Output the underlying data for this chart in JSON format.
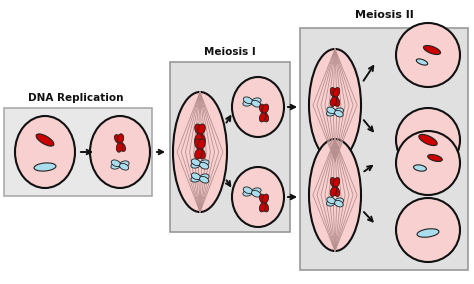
{
  "background_color": "#ffffff",
  "label_dna": "DNA Replication",
  "label_meiosis1": "Meiosis I",
  "label_meiosis2": "Meiosis II",
  "cell_fill": "#f8d0d0",
  "cell_edge": "#111111",
  "spindle_line_color": "#b89090",
  "chrom_red": "#cc0000",
  "chrom_cyan": "#aaddee",
  "arrow_color": "#111111",
  "box_fill": "#e0e0e0",
  "box_edge": "#999999",
  "dna_box_fill": "#e8e8e8",
  "dna_box_edge": "#aaaaaa"
}
